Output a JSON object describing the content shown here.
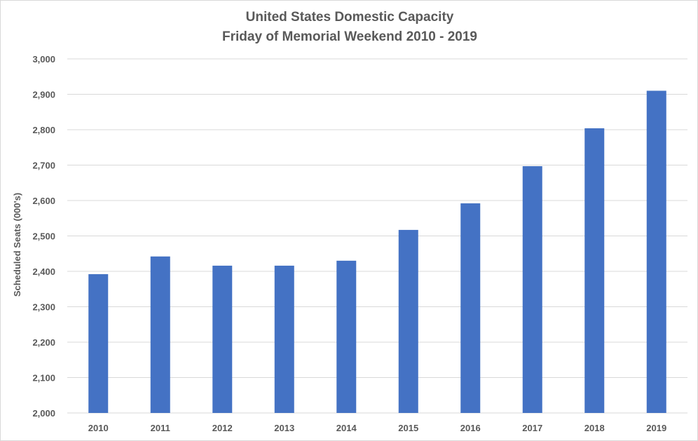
{
  "chart_data": {
    "type": "bar",
    "title": "United States Domestic Capacity",
    "subtitle": "Friday of Memorial Weekend 2010 - 2019",
    "xlabel": "",
    "ylabel": "Scheduled Seats (000's)",
    "categories": [
      "2010",
      "2011",
      "2012",
      "2013",
      "2014",
      "2015",
      "2016",
      "2017",
      "2018",
      "2019"
    ],
    "series": [
      {
        "name": "Scheduled Seats",
        "values": [
          2392,
          2442,
          2416,
          2416,
          2430,
          2517,
          2592,
          2697,
          2804,
          2910
        ]
      }
    ],
    "ylim": [
      2000,
      3000
    ],
    "yticks": [
      2000,
      2100,
      2200,
      2300,
      2400,
      2500,
      2600,
      2700,
      2800,
      2900,
      3000
    ],
    "ytick_labels": [
      "2,000",
      "2,100",
      "2,200",
      "2,300",
      "2,400",
      "2,500",
      "2,600",
      "2,700",
      "2,800",
      "2,900",
      "3,000"
    ],
    "grid": true,
    "legend": "none",
    "colors": {
      "bar": "#4472c4",
      "grid": "#d9d9d9",
      "text": "#595959"
    }
  }
}
